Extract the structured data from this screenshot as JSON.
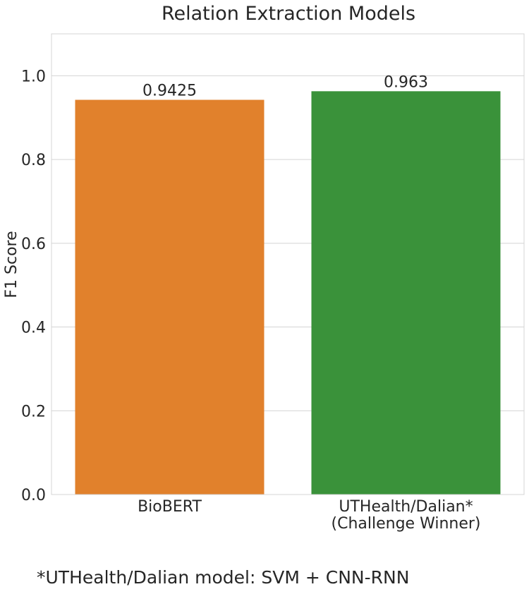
{
  "chart_data": {
    "type": "bar",
    "title": "Relation Extraction Models",
    "xlabel": "",
    "ylabel": "F1 Score",
    "ylim": [
      0,
      1.1
    ],
    "yticks": [
      "0.0",
      "0.2",
      "0.4",
      "0.6",
      "0.8",
      "1.0"
    ],
    "grid": true,
    "categories": [
      {
        "lines": [
          "BioBERT"
        ]
      },
      {
        "lines": [
          "UTHealth/Dalian*",
          "(Challenge Winner)"
        ]
      }
    ],
    "values": [
      0.9425,
      0.963
    ],
    "value_labels": [
      "0.9425",
      "0.963"
    ],
    "colors": [
      "#e1812c",
      "#3a923a"
    ]
  },
  "footnote": "*UTHealth/Dalian model: SVM + CNN-RNN"
}
